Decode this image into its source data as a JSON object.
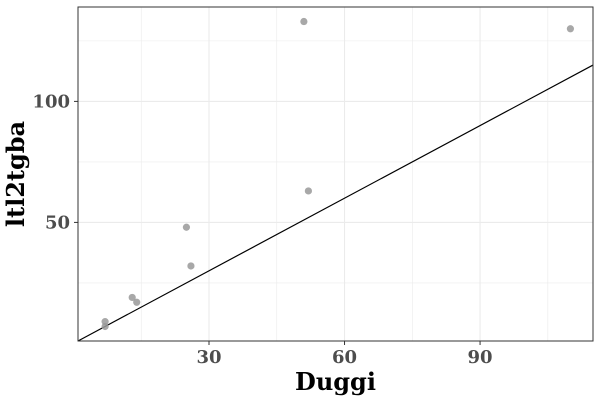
{
  "chart_data": {
    "type": "scatter",
    "title": "",
    "xlabel": "Duggi",
    "ylabel": "ltl2tgba",
    "xlim": [
      1,
      115
    ],
    "ylim": [
      1,
      139
    ],
    "x_major_ticks": [
      30,
      60,
      90
    ],
    "x_minor_ticks": [
      15,
      45,
      75,
      105
    ],
    "y_major_ticks": [
      50,
      100
    ],
    "y_minor_ticks": [
      25,
      75,
      125
    ],
    "grid": true,
    "diagonal_line": {
      "from": [
        1,
        1
      ],
      "to": [
        115,
        115
      ]
    },
    "points": [
      {
        "x": 7,
        "y": 9
      },
      {
        "x": 7,
        "y": 7
      },
      {
        "x": 13,
        "y": 19
      },
      {
        "x": 14,
        "y": 17
      },
      {
        "x": 25,
        "y": 48
      },
      {
        "x": 26,
        "y": 32
      },
      {
        "x": 51,
        "y": 133
      },
      {
        "x": 52,
        "y": 63
      },
      {
        "x": 110,
        "y": 130
      }
    ],
    "colors": {
      "point": "#999999",
      "line": "#000000",
      "grid": "#ebebeb",
      "panel_border": "#333333",
      "tick_label": "#4d4d4d"
    }
  }
}
